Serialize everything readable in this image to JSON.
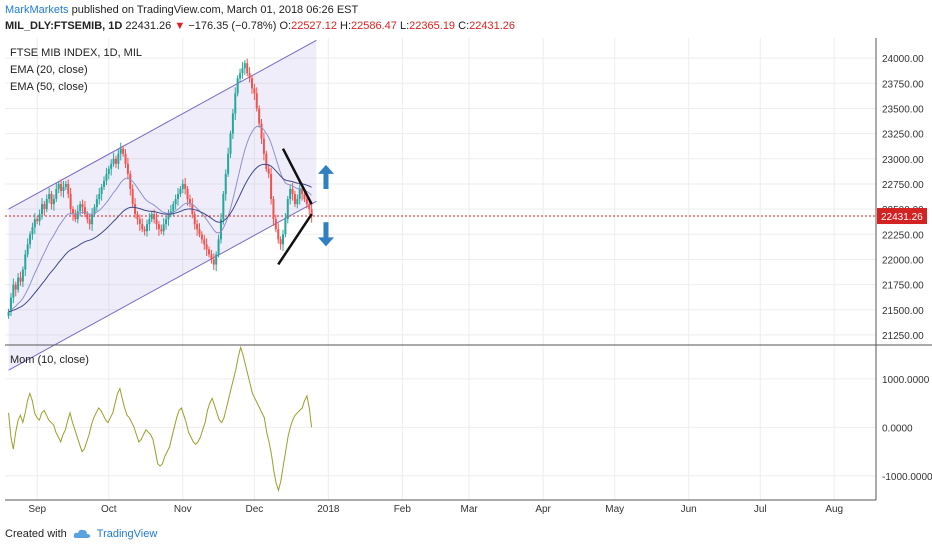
{
  "header": {
    "publisher": "MarkMarkets",
    "published_text": "published on TradingView.com, March 01, 2018 06:26 EST",
    "symbol": "MIL_DLY:FTSEMIB, 1D",
    "last": "22431.26",
    "change": "−176.35 (−0.78%)",
    "open_label": "O:",
    "open": "22527.12",
    "high_label": "H:",
    "high": "22586.47",
    "low_label": "L:",
    "low": "22365.19",
    "close_label": "C:",
    "close": "22431.26"
  },
  "legend": {
    "title": "FTSE MIB INDEX, 1D, MIL",
    "ema20": "EMA (20, close)",
    "ema50": "EMA (50, close)",
    "mom": "Mom (10, close)"
  },
  "price_tag": "22431.26",
  "footer": {
    "created_with": "Created with",
    "brand": "TradingView"
  },
  "colors": {
    "up": "#26a69a",
    "down": "#ef5350",
    "channel": "#7b68c9",
    "ema": "#3f4a86",
    "momentum": "#9aa02a",
    "arrow": "#2f7fc1",
    "price_line": "#d22222"
  },
  "chart_data": [
    {
      "type": "candlestick",
      "title": "FTSE MIB INDEX, 1D, MIL",
      "x_ticks": [
        "Sep",
        "Oct",
        "Nov",
        "Dec",
        "2018",
        "Feb",
        "Mar",
        "Apr",
        "May",
        "Jun",
        "Jul",
        "Aug"
      ],
      "y_ticks": [
        21250,
        21500,
        21750,
        22000,
        22250,
        22500,
        22750,
        23000,
        23250,
        23500,
        23750,
        24000
      ],
      "ylim": [
        21150,
        24200
      ],
      "last_price": 22431.26,
      "close_series": [
        21480,
        21620,
        21750,
        21700,
        21820,
        21780,
        21900,
        22050,
        22150,
        22250,
        22320,
        22400,
        22380,
        22450,
        22550,
        22500,
        22600,
        22650,
        22550,
        22600,
        22700,
        22750,
        22680,
        22720,
        22750,
        22650,
        22500,
        22450,
        22400,
        22480,
        22550,
        22520,
        22450,
        22400,
        22350,
        22450,
        22520,
        22600,
        22650,
        22720,
        22780,
        22850,
        22900,
        22950,
        23000,
        22950,
        23050,
        23100,
        23050,
        22950,
        22850,
        22700,
        22550,
        22450,
        22400,
        22350,
        22300,
        22280,
        22350,
        22400,
        22450,
        22400,
        22350,
        22300,
        22280,
        22350,
        22400,
        22450,
        22480,
        22550,
        22600,
        22650,
        22700,
        22750,
        22700,
        22600,
        22550,
        22450,
        22350,
        22300,
        22250,
        22200,
        22150,
        22100,
        22050,
        22000,
        21950,
        22050,
        22200,
        22400,
        22650,
        22850,
        23050,
        23250,
        23450,
        23650,
        23800,
        23850,
        23900,
        23950,
        23850,
        23800,
        23700,
        23650,
        23500,
        23350,
        23200,
        23050,
        22900,
        22850,
        22600,
        22400,
        22300,
        22200,
        22150,
        22250,
        22400,
        22600,
        22700,
        22650,
        22550,
        22600,
        22700,
        22650,
        22600,
        22550,
        22500,
        22431
      ],
      "series": [
        {
          "name": "EMA (20, close)"
        },
        {
          "name": "EMA (50, close)"
        }
      ],
      "channel": {
        "lower_start": 20900,
        "upper_start": 22500,
        "slope_per_day": 13
      },
      "triangle": {
        "upper": [
          [
            115,
            23100
          ],
          [
            127,
            22550
          ]
        ],
        "lower": [
          [
            113,
            21950
          ],
          [
            127,
            22450
          ]
        ]
      },
      "arrows": [
        "up",
        "down"
      ]
    },
    {
      "type": "line",
      "title": "Mom (10, close)",
      "series": [
        {
          "name": "Mom (10, close)"
        }
      ],
      "y_ticks": [
        1000,
        0,
        -1000
      ],
      "ylim": [
        -1500,
        1700
      ],
      "values": [
        300,
        -200,
        -450,
        -100,
        150,
        250,
        100,
        300,
        550,
        700,
        550,
        300,
        200,
        150,
        300,
        350,
        250,
        150,
        100,
        50,
        -100,
        -200,
        -300,
        -150,
        -50,
        150,
        300,
        100,
        -50,
        -200,
        -350,
        -500,
        -450,
        -300,
        -150,
        50,
        200,
        300,
        400,
        350,
        250,
        150,
        100,
        200,
        300,
        500,
        700,
        800,
        600,
        400,
        250,
        200,
        100,
        0,
        -150,
        -300,
        -250,
        -150,
        -50,
        -100,
        -150,
        -250,
        -500,
        -750,
        -800,
        -750,
        -600,
        -500,
        -400,
        -200,
        0,
        200,
        350,
        400,
        250,
        100,
        -100,
        -200,
        -300,
        -350,
        -300,
        -200,
        -50,
        100,
        350,
        500,
        600,
        450,
        300,
        150,
        100,
        200,
        400,
        600,
        800,
        1000,
        1200,
        1450,
        1650,
        1500,
        1300,
        1100,
        900,
        700,
        600,
        500,
        400,
        300,
        200,
        -100,
        -300,
        -550,
        -900,
        -1150,
        -1300,
        -1100,
        -800,
        -500,
        -200,
        0,
        150,
        250,
        300,
        350,
        400,
        550,
        650,
        400,
        0
      ],
      "x_ticks": [
        "Sep",
        "Oct",
        "Nov",
        "Dec",
        "2018",
        "Feb",
        "Mar",
        "Apr",
        "May",
        "Jun",
        "Jul",
        "Aug"
      ]
    }
  ]
}
